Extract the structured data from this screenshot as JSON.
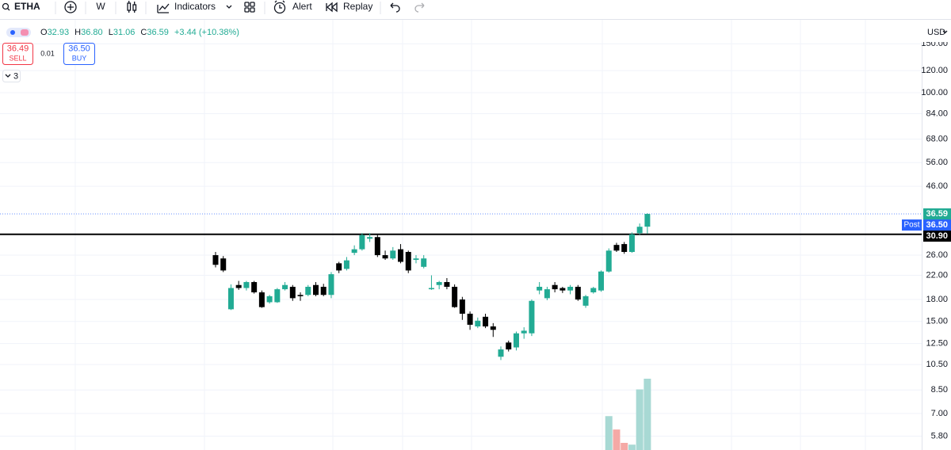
{
  "toolbar": {
    "symbol": "ETHA",
    "interval": "W",
    "indicators": "Indicators",
    "alert": "Alert",
    "replay": "Replay"
  },
  "legend": {
    "open_label": "O",
    "open": "32.93",
    "high_label": "H",
    "high": "36.80",
    "low_label": "L",
    "low": "31.06",
    "close_label": "C",
    "close": "36.59",
    "change": "+3.44 (+10.38%)"
  },
  "trade": {
    "sell_price": "36.49",
    "sell": "SELL",
    "spread": "0.01",
    "buy_price": "36.50",
    "buy": "BUY"
  },
  "indicator_count": "3",
  "chart_data": {
    "type": "candlestick",
    "currency": "USD",
    "log_scale": true,
    "grid": true,
    "up_color": "#22ab94",
    "down_color": "#000000",
    "volume_up_color": "#a8d9d4",
    "volume_down_color": "#f5a9a6",
    "ylim": [
      5.17,
      177
    ],
    "yticks": [
      {
        "value": 150,
        "label": "150.00"
      },
      {
        "value": 120,
        "label": "120.00"
      },
      {
        "value": 100,
        "label": "100.00"
      },
      {
        "value": 84,
        "label": "84.00"
      },
      {
        "value": 68,
        "label": "68.00"
      },
      {
        "value": 56,
        "label": "56.00"
      },
      {
        "value": 46,
        "label": "46.00"
      },
      {
        "value": 26,
        "label": "26.00"
      },
      {
        "value": 22,
        "label": "22.00"
      },
      {
        "value": 18,
        "label": "18.00"
      },
      {
        "value": 15,
        "label": "15.00"
      },
      {
        "value": 12.5,
        "label": "12.50"
      },
      {
        "value": 10.5,
        "label": "10.50"
      },
      {
        "value": 8.5,
        "label": "8.50"
      },
      {
        "value": 7,
        "label": "7.00"
      },
      {
        "value": 5.8,
        "label": "5.80"
      }
    ],
    "open": [
      26.0,
      25.3,
      16.6,
      20.3,
      19.8,
      20.8,
      19.1,
      17.6,
      17.6,
      19.6,
      20.0,
      18.7,
      18.7,
      20.3,
      20.0,
      18.7,
      24.3,
      23.2,
      26.5,
      27.3,
      29.8,
      30.2,
      26.0,
      25.3,
      27.3,
      26.7,
      25.0,
      23.6,
      19.6,
      20.3,
      20.8,
      20.0,
      18.0,
      16.0,
      14.4,
      15.6,
      14.4,
      11.2,
      12.6,
      12.1,
      13.6,
      13.6,
      19.4,
      18.2,
      20.3,
      19.8,
      19.4,
      20.0,
      17.1,
      19.1,
      19.4,
      22.7,
      28.3,
      28.5,
      26.7,
      31.2,
      32.93
    ],
    "high": [
      26.7,
      25.8,
      20.4,
      21.0,
      21.0,
      21.0,
      19.4,
      18.7,
      19.8,
      20.8,
      20.3,
      19.1,
      20.3,
      20.8,
      20.5,
      22.6,
      24.6,
      25.6,
      28.2,
      31.2,
      31.2,
      31.0,
      27.0,
      27.8,
      28.5,
      27.0,
      26.0,
      26.0,
      22.0,
      21.0,
      21.5,
      20.4,
      18.4,
      16.3,
      15.5,
      16.0,
      14.8,
      12.2,
      12.8,
      13.8,
      14.3,
      18.0,
      20.8,
      20.0,
      20.8,
      20.0,
      20.3,
      20.3,
      18.7,
      20.0,
      22.9,
      27.5,
      28.8,
      29.0,
      31.4,
      33.8,
      36.8
    ],
    "low": [
      23.5,
      22.6,
      16.5,
      19.5,
      19.4,
      18.9,
      16.8,
      17.4,
      17.5,
      19.4,
      17.8,
      17.8,
      18.5,
      18.5,
      18.5,
      18.2,
      22.4,
      22.9,
      26.0,
      27.0,
      29.0,
      25.6,
      25.0,
      25.0,
      24.3,
      22.4,
      24.3,
      23.3,
      19.5,
      19.6,
      19.6,
      16.8,
      15.2,
      14.0,
      14.2,
      14.2,
      13.2,
      10.9,
      11.7,
      11.8,
      13.0,
      13.3,
      18.8,
      17.9,
      19.1,
      19.0,
      18.8,
      17.8,
      16.8,
      18.9,
      19.2,
      22.5,
      26.7,
      26.3,
      26.5,
      30.8,
      31.06
    ],
    "close": [
      24.0,
      22.9,
      19.8,
      19.8,
      20.8,
      19.1,
      16.9,
      18.5,
      19.6,
      20.3,
      18.2,
      18.5,
      20.0,
      18.7,
      18.7,
      22.2,
      22.9,
      24.9,
      27.3,
      30.7,
      30.2,
      26.0,
      25.3,
      27.0,
      24.6,
      22.9,
      25.3,
      25.3,
      19.8,
      20.8,
      20.0,
      16.9,
      16.0,
      14.6,
      15.1,
      14.4,
      14.0,
      11.9,
      11.9,
      13.6,
      13.9,
      17.8,
      20.0,
      19.6,
      19.6,
      19.4,
      20.0,
      18.0,
      18.5,
      19.8,
      22.7,
      27.0,
      27.0,
      26.7,
      30.9,
      32.9,
      36.59
    ],
    "volume": [
      null,
      null,
      null,
      null,
      null,
      null,
      null,
      null,
      null,
      null,
      null,
      null,
      null,
      null,
      null,
      null,
      null,
      null,
      null,
      null,
      null,
      null,
      null,
      null,
      null,
      null,
      null,
      null,
      null,
      null,
      null,
      null,
      null,
      null,
      null,
      null,
      null,
      null,
      null,
      null,
      null,
      null,
      null,
      null,
      null,
      null,
      null,
      null,
      null,
      null,
      null,
      38,
      23,
      8,
      6,
      68,
      80
    ],
    "last_price": {
      "value": 36.59,
      "label": "36.59",
      "color": "#22ab94"
    },
    "post_price": {
      "tag": "Post",
      "value": 36.5,
      "label": "36.50",
      "color": "#2962ff"
    },
    "horizontal_line": {
      "value": 30.9,
      "label": "30.90",
      "color": "#000000"
    }
  }
}
